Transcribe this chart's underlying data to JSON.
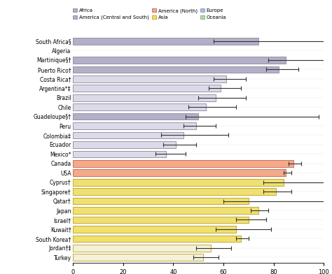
{
  "countries": [
    "South Africa§",
    "Algeria",
    "Martinique§†",
    "Puerto Rico†",
    "Costa Rica†",
    "Argentina*‡",
    "Brazil",
    "Chile",
    "Guadeloupe§†",
    "Peru",
    "Colombia‡",
    "Ecuador",
    "Mexico*",
    "Canada",
    "USA",
    "Cyprus†",
    "Singapore†",
    "Qatar†",
    "Japan",
    "Israel†",
    "Kuwait†",
    "South Korea†",
    "Jordan†‡",
    "Turkey"
  ],
  "values": [
    74,
    0,
    85,
    82,
    61,
    59,
    57,
    53,
    50,
    49,
    44,
    41,
    37,
    88,
    85,
    84,
    81,
    70,
    74,
    70,
    65,
    67,
    55,
    52
  ],
  "ci_lower": [
    18,
    0,
    7,
    5,
    5,
    5,
    7,
    7,
    5,
    5,
    9,
    5,
    4,
    2,
    1,
    8,
    5,
    10,
    3,
    5,
    8,
    2,
    6,
    4
  ],
  "ci_upper": [
    28,
    0,
    18,
    8,
    8,
    8,
    12,
    12,
    48,
    8,
    18,
    8,
    8,
    3,
    2,
    18,
    6,
    32,
    4,
    7,
    14,
    3,
    8,
    6
  ],
  "colors": [
    "#b3afc8",
    "#ffffff",
    "#b3afc8",
    "#b3afc8",
    "#dcdae8",
    "#dcdae8",
    "#dcdae8",
    "#dcdae8",
    "#b3afc8",
    "#dcdae8",
    "#dcdae8",
    "#dcdae8",
    "#dcdae8",
    "#f4a989",
    "#f4a989",
    "#f0e070",
    "#f0e070",
    "#f0e070",
    "#f0e070",
    "#f0e070",
    "#f0e070",
    "#f0e070",
    "#f5f0d8",
    "#f5f0d8"
  ],
  "edge_colors": [
    "#888899",
    "#888899",
    "#888899",
    "#888899",
    "#888899",
    "#888899",
    "#888899",
    "#888899",
    "#888899",
    "#888899",
    "#888899",
    "#888899",
    "#888899",
    "#c06050",
    "#c06050",
    "#b8a020",
    "#b8a020",
    "#b8a020",
    "#b8a020",
    "#b8a020",
    "#b8a020",
    "#b8a020",
    "#b8a020",
    "#b8a020"
  ],
  "xlim": [
    0,
    100
  ],
  "figsize": [
    4.74,
    3.92
  ],
  "dpi": 100,
  "legend": [
    {
      "label": "Africa",
      "facecolor": "#b3afc8",
      "edgecolor": "#888899"
    },
    {
      "label": "America (Central and South)",
      "facecolor": "#b3afc8",
      "edgecolor": "#888899"
    },
    {
      "label": "America (North)",
      "facecolor": "#f4a989",
      "edgecolor": "#c06050"
    },
    {
      "label": "Asia",
      "facecolor": "#f0e070",
      "edgecolor": "#b8a020"
    },
    {
      "label": "Europe",
      "facecolor": "#aabbdd",
      "edgecolor": "#8899bb"
    },
    {
      "label": "Oceania",
      "facecolor": "#b8d4a8",
      "edgecolor": "#88aa78"
    }
  ]
}
